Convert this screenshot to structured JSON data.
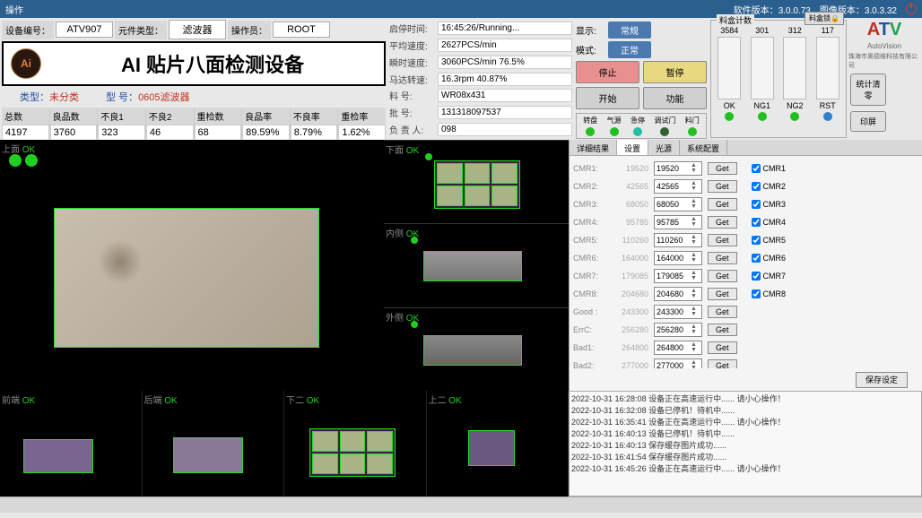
{
  "titlebar": {
    "menu": "操作",
    "sw_ver_label": "软件版本：",
    "sw_ver": "3.0.0.73",
    "img_ver_label": "图像版本：",
    "img_ver": "3.0.3.32"
  },
  "info": {
    "device_id_label": "设备编号：",
    "device_id": "ATV907",
    "component_type_label": "元件类型：",
    "component_type": "滤波器",
    "operator_label": "操作员：",
    "operator": "ROOT"
  },
  "title": {
    "main": "AI 贴片八面检测设备",
    "cat_label": "类型：",
    "cat": "未分类",
    "model_label": "型 号：",
    "model": "0605滤波器"
  },
  "stats": {
    "cols": [
      "总数",
      "良品数",
      "不良1",
      "不良2",
      "重检数",
      "良品率",
      "不良率",
      "重检率"
    ],
    "vals": [
      "4197",
      "3760",
      "323",
      "46",
      "68",
      "89.59%",
      "8.79%",
      "1.62%"
    ]
  },
  "runtime": {
    "rows": [
      {
        "k": "启停时间:",
        "v": "16:45:26/Running..."
      },
      {
        "k": "平均速度:",
        "v": "2627PCS/min"
      },
      {
        "k": "瞬时速度:",
        "v": "3060PCS/min 76.5%"
      },
      {
        "k": "马达转速:",
        "v": "16.3rpm 40.87%"
      },
      {
        "k": "料    号:",
        "v": "WR08x431"
      },
      {
        "k": "批    号:",
        "v": "131318097537"
      },
      {
        "k": "负 责 人:",
        "v": "098"
      }
    ]
  },
  "ctrl": {
    "display_label": "显示:",
    "display_val": "常规",
    "mode_label": "模式:",
    "mode_val": "正常",
    "btns": [
      "停止",
      "暂停",
      "开始",
      "功能"
    ],
    "leds": [
      "转盘",
      "气源",
      "急停",
      "调试门",
      "料门"
    ]
  },
  "counts": {
    "title": "料盒计数",
    "lock": "料盒锁🔒",
    "cols": [
      {
        "n": "3584",
        "lbl": "OK",
        "color": "#20c020"
      },
      {
        "n": "301",
        "lbl": "NG1",
        "color": "#20c020"
      },
      {
        "n": "312",
        "lbl": "NG2",
        "color": "#20c020"
      },
      {
        "n": "117",
        "lbl": "RST",
        "color": "#3080d0"
      }
    ]
  },
  "logo": {
    "brand": "AutoVision",
    "company": "珠海市奥德维科技有限公司"
  },
  "side_btns": [
    "统计清零",
    "印屏"
  ],
  "cams": {
    "top": "上面",
    "bottom": "下面",
    "inner": "内侧",
    "outer": "外侧",
    "front": "前端",
    "rear": "后端",
    "down2": "下二",
    "up2": "上二",
    "ok": "OK"
  },
  "tabs": [
    "详细结果",
    "设置",
    "光源",
    "系统配置"
  ],
  "params": [
    {
      "k": "CMR1:",
      "v": "19520",
      "spin": "19520",
      "chk": "CMR1"
    },
    {
      "k": "CMR2:",
      "v": "42565",
      "spin": "42565",
      "chk": "CMR2"
    },
    {
      "k": "CMR3:",
      "v": "68050",
      "spin": "68050",
      "chk": "CMR3"
    },
    {
      "k": "CMR4:",
      "v": "95785",
      "spin": "95785",
      "chk": "CMR4"
    },
    {
      "k": "CMR5:",
      "v": "110260",
      "spin": "110260",
      "chk": "CMR5"
    },
    {
      "k": "CMR6:",
      "v": "164000",
      "spin": "164000",
      "chk": "CMR6"
    },
    {
      "k": "CMR7:",
      "v": "179085",
      "spin": "179085",
      "chk": "CMR7"
    },
    {
      "k": "CMR8:",
      "v": "204680",
      "spin": "204680",
      "chk": "CMR8"
    },
    {
      "k": "Good :",
      "v": "243300",
      "spin": "243300",
      "chk": ""
    },
    {
      "k": "ErrC:",
      "v": "256280",
      "spin": "256280",
      "chk": ""
    },
    {
      "k": "Bad1:",
      "v": "264800",
      "spin": "264800",
      "chk": ""
    },
    {
      "k": "Bad2:",
      "v": "277000",
      "spin": "277000",
      "chk": ""
    }
  ],
  "get_label": "Get",
  "save_label": "保存设定",
  "log": [
    "2022-10-31 16:28:08 设备正在高速运行中...... 请小心操作！",
    "2022-10-31 16:32:08 设备已停机！待机中......",
    "2022-10-31 16:35:41 设备正在高速运行中...... 请小心操作！",
    "2022-10-31 16:40:13 设备已停机！待机中......",
    "2022-10-31 16:40:13 保存缓存图片成功......",
    "2022-10-31 16:41:54 保存缓存图片成功......",
    "2022-10-31 16:45:26 设备正在高速运行中...... 请小心操作！"
  ]
}
